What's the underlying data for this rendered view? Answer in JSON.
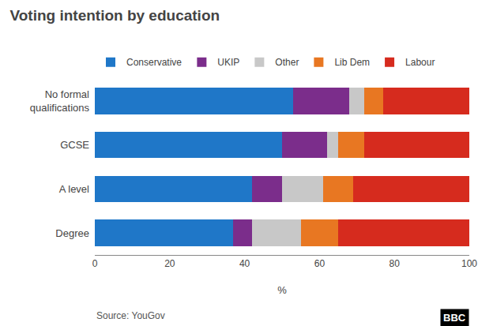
{
  "chart_data": {
    "type": "bar",
    "title": "Voting intention by education",
    "xlabel": "%",
    "categories": [
      "No formal\nqualifications",
      "GCSE",
      "A level",
      "Degree"
    ],
    "series": [
      {
        "name": "Conservative",
        "color": "#1F77C8",
        "values": [
          53,
          50,
          42,
          37
        ]
      },
      {
        "name": "UKIP",
        "color": "#7B2D8B",
        "values": [
          15,
          12,
          8,
          5
        ]
      },
      {
        "name": "Other",
        "color": "#C8C8C8",
        "values": [
          4,
          3,
          11,
          13
        ]
      },
      {
        "name": "Lib Dem",
        "color": "#E87722",
        "values": [
          5,
          7,
          8,
          10
        ]
      },
      {
        "name": "Labour",
        "color": "#D62B1E",
        "values": [
          23,
          28,
          31,
          35
        ]
      }
    ],
    "xlim": [
      0,
      100
    ],
    "xticks": [
      0,
      20,
      40,
      60,
      80,
      100
    ],
    "orientation": "horizontal",
    "stacked": true,
    "grid": false,
    "legend": "top",
    "annotations": [
      "Source: YouGov",
      "BBC"
    ]
  }
}
